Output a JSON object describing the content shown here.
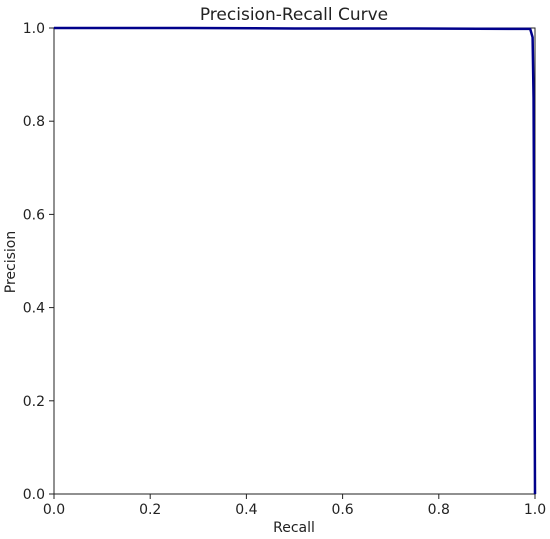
{
  "chart_data": {
    "type": "line",
    "title": "Precision-Recall Curve",
    "xlabel": "Recall",
    "ylabel": "Precision",
    "xlim": [
      0.0,
      1.0
    ],
    "ylim": [
      0.0,
      1.0
    ],
    "x_ticks": [
      0.0,
      0.2,
      0.4,
      0.6,
      0.8,
      1.0
    ],
    "y_ticks": [
      0.0,
      0.2,
      0.4,
      0.6,
      0.8,
      1.0
    ],
    "x_tick_labels": [
      "0.0",
      "0.2",
      "0.4",
      "0.6",
      "0.8",
      "1.0"
    ],
    "y_tick_labels": [
      "0.0",
      "0.2",
      "0.4",
      "0.6",
      "0.8",
      "1.0"
    ],
    "grid": false,
    "legend": "none",
    "series": [
      {
        "color": "#00008b",
        "x": [
          0.0,
          0.28,
          0.5,
          0.75,
          0.99,
          0.995,
          0.997,
          0.998,
          0.999,
          1.0
        ],
        "y": [
          1.0,
          1.0,
          0.999,
          0.999,
          0.998,
          0.98,
          0.85,
          0.6,
          0.3,
          0.0
        ]
      }
    ]
  }
}
